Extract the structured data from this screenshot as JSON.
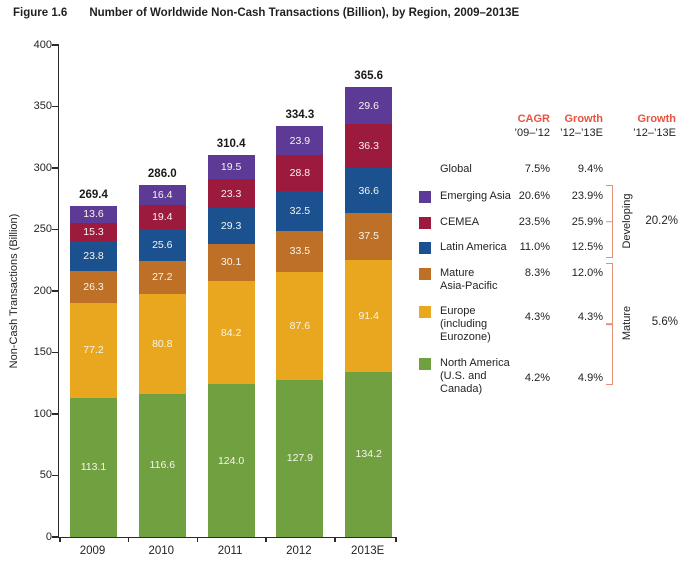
{
  "title": {
    "figure_label": "Figure 1.6",
    "text": "Number of Worldwide Non-Cash Transactions (Billion), by Region, 2009–2013E"
  },
  "chart_data": {
    "type": "bar",
    "stacked": true,
    "title": "Number of Worldwide Non-Cash Transactions (Billion), by Region, 2009–2013E",
    "categories": [
      "2009",
      "2010",
      "2011",
      "2012",
      "2013E"
    ],
    "series": [
      {
        "name": "North America (U.S. and Canada)",
        "color": "#71a040",
        "values": [
          113.1,
          116.6,
          124.0,
          127.9,
          134.2
        ]
      },
      {
        "name": "Europe (including Eurozone)",
        "color": "#e8a71f",
        "values": [
          77.2,
          80.8,
          84.2,
          87.6,
          91.4
        ]
      },
      {
        "name": "Mature Asia-Pacific",
        "color": "#bf7027",
        "values": [
          26.3,
          27.2,
          30.1,
          33.5,
          37.5
        ]
      },
      {
        "name": "Latin America",
        "color": "#1b518e",
        "values": [
          23.8,
          25.6,
          29.3,
          32.5,
          36.6
        ]
      },
      {
        "name": "CEMEA",
        "color": "#9c1b3d",
        "values": [
          15.3,
          19.4,
          23.3,
          28.8,
          36.3
        ]
      },
      {
        "name": "Emerging Asia",
        "color": "#5d3a96",
        "values": [
          13.6,
          16.4,
          19.5,
          23.9,
          29.6
        ]
      }
    ],
    "totals": [
      "269.4",
      "286.0",
      "310.4",
      "334.3",
      "365.6"
    ],
    "xlabel": "",
    "ylabel": "Non-Cash Transactions (Billion)",
    "ylim": [
      0,
      400
    ],
    "yticks": [
      0,
      50,
      100,
      150,
      200,
      250,
      300,
      350,
      400
    ],
    "grid": false,
    "legend_position": "right"
  },
  "legend": {
    "headers": [
      {
        "line1": "CAGR",
        "line2": "’09–’12"
      },
      {
        "line1": "Growth",
        "line2": "’12–’13E"
      },
      {
        "line1": "Growth",
        "line2": "’12–’13E"
      }
    ],
    "rows": [
      {
        "key": "global",
        "label_lines": [
          "Global"
        ],
        "color": null,
        "cagr": "7.5%",
        "growth": "9.4%"
      },
      {
        "key": "emerging-asia",
        "label_lines": [
          "Emerging Asia"
        ],
        "color": "#5d3a96",
        "cagr": "20.6%",
        "growth": "23.9%"
      },
      {
        "key": "cemea",
        "label_lines": [
          "CEMEA"
        ],
        "color": "#9c1b3d",
        "cagr": "23.5%",
        "growth": "25.9%"
      },
      {
        "key": "latin-america",
        "label_lines": [
          "Latin America"
        ],
        "color": "#1b518e",
        "cagr": "11.0%",
        "growth": "12.5%"
      },
      {
        "key": "mature-asia-pacific",
        "label_lines": [
          "Mature",
          "Asia-Pacific"
        ],
        "color": "#bf7027",
        "cagr": "8.3%",
        "growth": "12.0%"
      },
      {
        "key": "europe",
        "label_lines": [
          "Europe",
          "(including",
          "Eurozone)"
        ],
        "color": "#e8a71f",
        "cagr": "4.3%",
        "growth": "4.3%"
      },
      {
        "key": "north-america",
        "label_lines": [
          "North America",
          "(U.S. and",
          "Canada)"
        ],
        "color": "#71a040",
        "cagr": "4.2%",
        "growth": "4.9%"
      }
    ],
    "groups": [
      {
        "label": "Developing",
        "value": "20.2%"
      },
      {
        "label": "Mature",
        "value": "5.6%"
      }
    ]
  },
  "colors": {
    "header_accent": "#e8543e",
    "bracket": "#e09379",
    "axis": "#2e2a2b",
    "bar_value_text": "#f7f4ec"
  }
}
